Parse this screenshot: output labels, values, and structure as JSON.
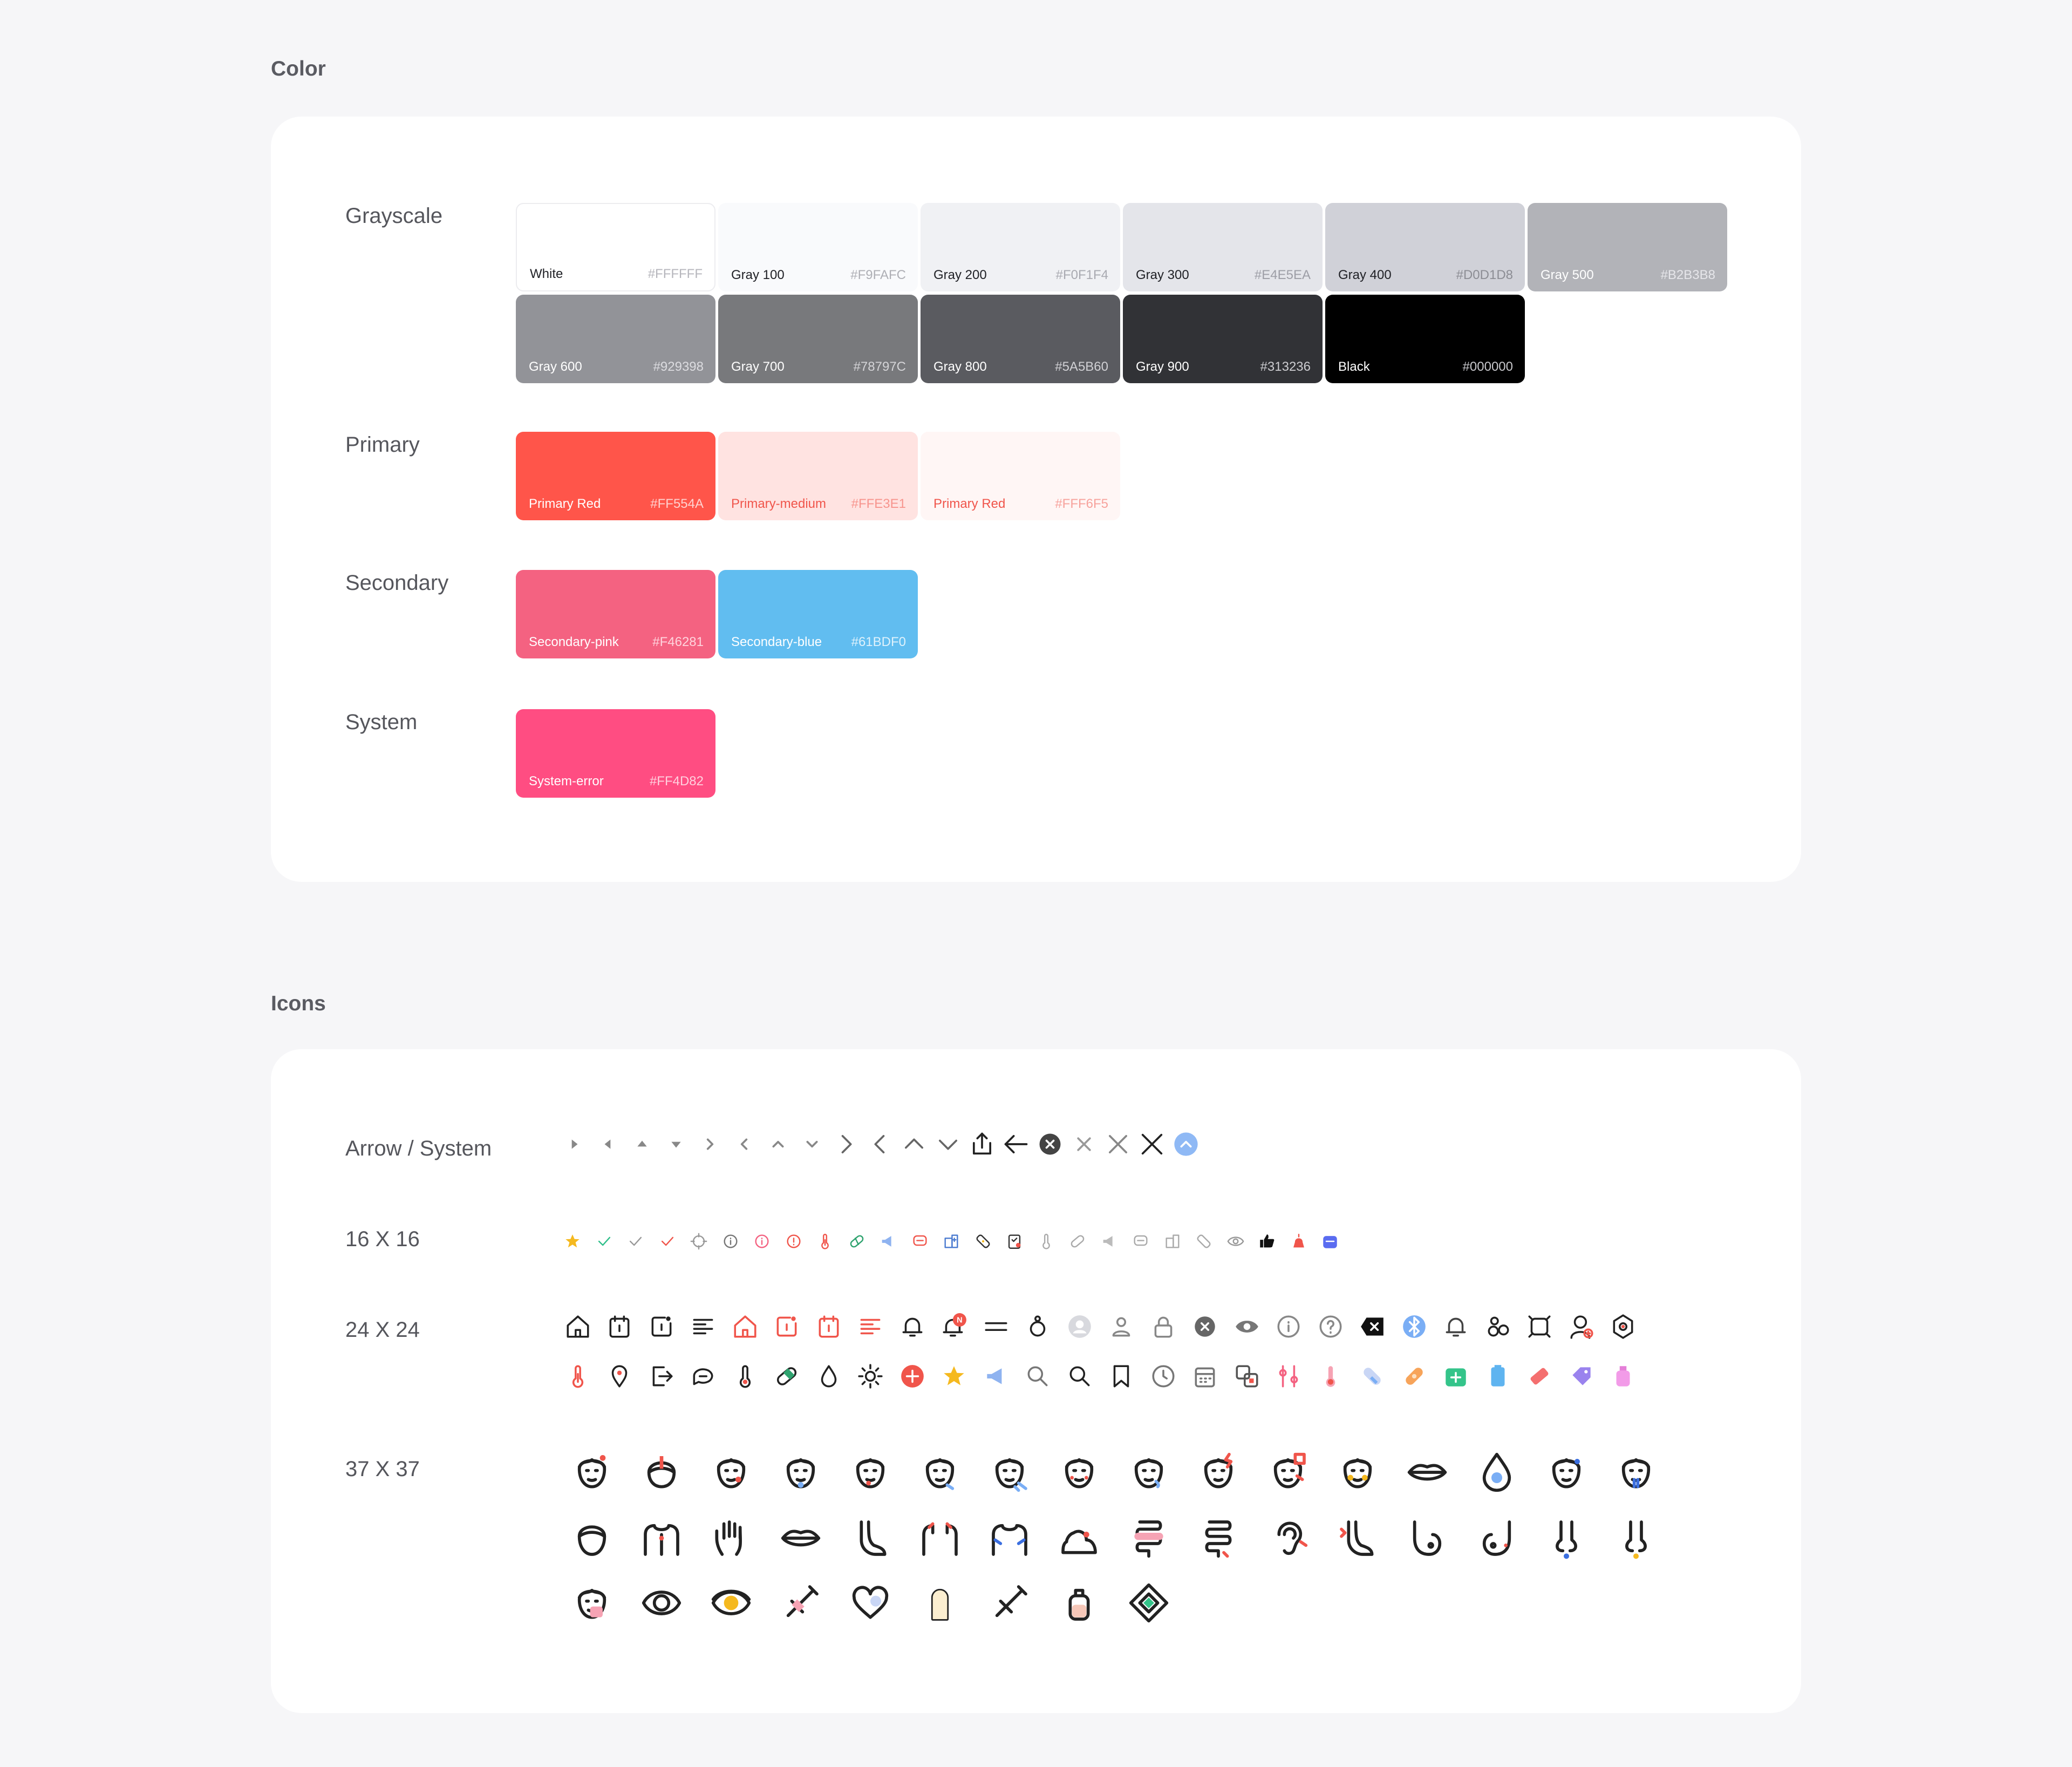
{
  "sections": {
    "color_title": "Color",
    "icons_title": "Icons"
  },
  "color": {
    "grayscale_label": "Grayscale",
    "primary_label": "Primary",
    "secondary_label": "Secondary",
    "system_label": "System",
    "grayscale": [
      {
        "name": "White",
        "hex": "#FFFFFF",
        "bg": "#FFFFFF",
        "fg": "#202126",
        "hexfg": "#b6b6bc",
        "border": "#ececef"
      },
      {
        "name": "Gray 100",
        "hex": "#F9FAFC",
        "bg": "#F9FAFC",
        "fg": "#202126",
        "hexfg": "#aeafb5"
      },
      {
        "name": "Gray 200",
        "hex": "#F0F1F4",
        "bg": "#F0F1F4",
        "fg": "#202126",
        "hexfg": "#a9aab1"
      },
      {
        "name": "Gray 300",
        "hex": "#E4E5EA",
        "bg": "#E4E5EA",
        "fg": "#202126",
        "hexfg": "#9d9ea6"
      },
      {
        "name": "Gray 400",
        "hex": "#D0D1D8",
        "bg": "#D0D1D8",
        "fg": "#202126",
        "hexfg": "#8c8d94"
      },
      {
        "name": "Gray 500",
        "hex": "#B2B3B8",
        "bg": "#B2B3B8",
        "fg": "#ffffff",
        "hexfg": "#e6e6ea"
      },
      {
        "name": "Gray 600",
        "hex": "#929398",
        "bg": "#929398",
        "fg": "#ffffff",
        "hexfg": "#dcdce0"
      },
      {
        "name": "Gray 700",
        "hex": "#78797C",
        "bg": "#78797C",
        "fg": "#ffffff",
        "hexfg": "#d4d4d7"
      },
      {
        "name": "Gray 800",
        "hex": "#5A5B60",
        "bg": "#5A5B60",
        "fg": "#ffffff",
        "hexfg": "#d0d0d4"
      },
      {
        "name": "Gray 900",
        "hex": "#313236",
        "bg": "#313236",
        "fg": "#ffffff",
        "hexfg": "#cdcdd1"
      },
      {
        "name": "Black",
        "hex": "#000000",
        "bg": "#000000",
        "fg": "#ffffff",
        "hexfg": "#c8c8cc"
      }
    ],
    "primary": [
      {
        "name": "Primary Red",
        "hex": "#FF554A",
        "bg": "#FF554A",
        "fg": "#ffffff",
        "hexfg": "#ffd2cf"
      },
      {
        "name": "Primary-medium",
        "hex": "#FFE3E1",
        "bg": "#FFE3E1",
        "fg": "#f0554b",
        "hexfg": "#f7948d"
      },
      {
        "name": "Primary Red",
        "hex": "#FFF6F5",
        "bg": "#FFF6F5",
        "fg": "#f0554b",
        "hexfg": "#f7a29c"
      }
    ],
    "secondary": [
      {
        "name": "Secondary-pink",
        "hex": "#F46281",
        "bg": "#F46281",
        "fg": "#ffffff",
        "hexfg": "#ffd4dd"
      },
      {
        "name": "Secondary-blue",
        "hex": "#61BDF0",
        "bg": "#61BDF0",
        "fg": "#ffffff",
        "hexfg": "#dff2fc"
      }
    ],
    "system": [
      {
        "name": "System-error",
        "hex": "#FF4D82",
        "bg": "#FF4D82",
        "fg": "#ffffff",
        "hexfg": "#ffd0de"
      }
    ]
  },
  "icons": {
    "arrow_label": "Arrow / System",
    "size16_label": "16 X 16",
    "size24_label": "24 X 24",
    "size37_label": "37 X 37",
    "badge_letter": "N",
    "arrow_system": [
      "caret-right-icon",
      "caret-left-icon",
      "caret-up-icon",
      "caret-down-icon",
      "chevron-right-small-icon",
      "chevron-left-small-icon",
      "chevron-up-small-icon",
      "chevron-down-small-icon",
      "chevron-right-icon",
      "chevron-left-icon",
      "chevron-up-icon",
      "chevron-down-icon",
      "share-icon",
      "arrow-left-icon",
      "close-circle-icon",
      "close-small-icon",
      "close-medium-icon",
      "close-large-icon",
      "scroll-top-icon"
    ],
    "icons_16": [
      "star-icon",
      "check-green-icon",
      "check-gray-icon",
      "check-red-icon",
      "target-icon",
      "info-circle-icon",
      "info-circle-pink-icon",
      "info-circle-red-icon",
      "thermometer-icon",
      "pill-icon",
      "megaphone-icon",
      "chat-icon",
      "hospital-icon",
      "bandage-icon",
      "clipboard-icon",
      "thermometer-gray-icon",
      "pill-gray-icon",
      "megaphone-gray-icon",
      "chat-gray-icon",
      "hospital-gray-icon",
      "bandage-gray-icon",
      "eye-icon",
      "thumbs-up-icon",
      "alarm-icon",
      "calendar-blue-icon"
    ],
    "icons_24_row1": [
      "home-icon",
      "calendar-icon",
      "edit-square-icon",
      "list-icon",
      "home-red-icon",
      "edit-square-red-icon",
      "calendar-red-icon",
      "list-red-icon",
      "bell-icon",
      "bell-badge-icon",
      "menu-icon",
      "user-icon",
      "profile-placeholder-icon",
      "user-gray-icon",
      "lock-icon",
      "close-circle-gray-icon",
      "eye-gray-icon",
      "info-icon",
      "help-icon",
      "delete-key-icon",
      "bluetooth-icon",
      "bell-gray-icon",
      "people-icon",
      "settings-alt-icon",
      "doctor-icon",
      "gear-icon"
    ],
    "icons_24_row2": [
      "thermometer-icon",
      "location-pin-icon",
      "logout-icon",
      "chat-bubble-icon",
      "thermometer-red-icon",
      "pill-green-icon",
      "drop-icon",
      "sun-icon",
      "plus-circle-red-icon",
      "star-yellow-icon",
      "megaphone-blue-icon",
      "search-gray-icon",
      "search-icon",
      "bookmark-icon",
      "clock-icon",
      "calendar-gray-icon",
      "translate-icon",
      "filter-pink-icon",
      "thermometer-pink-icon",
      "pill-blue-icon",
      "bandage-orange-icon",
      "first-aid-green-icon",
      "battery-blue-icon",
      "eraser-red-icon",
      "tag-purple-icon",
      "bottle-pink-icon"
    ],
    "icons_37_row1": [
      "face-headache-icon",
      "face-fever-icon",
      "face-cheek-icon",
      "face-runny-nose-icon",
      "face-nosebleed-icon",
      "face-cough-icon",
      "face-sneeze-icon",
      "face-allergy-icon",
      "face-sweat-icon",
      "face-pain-icon",
      "face-migraine-icon",
      "face-blush-icon",
      "lips-icon",
      "oxygen-drop-icon",
      "face-blue-dot-icon",
      "face-blue-icon"
    ],
    "icons_37_row2": [
      "head-icon",
      "torso-icon",
      "hand-icon",
      "mouth-icon",
      "leg-icon",
      "shoulders-icon",
      "chest-icon",
      "bloating-icon",
      "intestine-pain-icon",
      "intestine-icon",
      "ear-icon",
      "leg-pain-icon",
      "breast-left-icon",
      "breast-right-icon",
      "nose-blue-icon",
      "nose-yellow-icon"
    ],
    "icons_37_row3": [
      "face-mask-icon",
      "eye-large-icon",
      "eye-yellow-icon",
      "syringe-red-icon",
      "pills-heart-icon",
      "capsule-icon",
      "syringe-icon",
      "baby-bottle-icon",
      "patch-icon"
    ]
  }
}
